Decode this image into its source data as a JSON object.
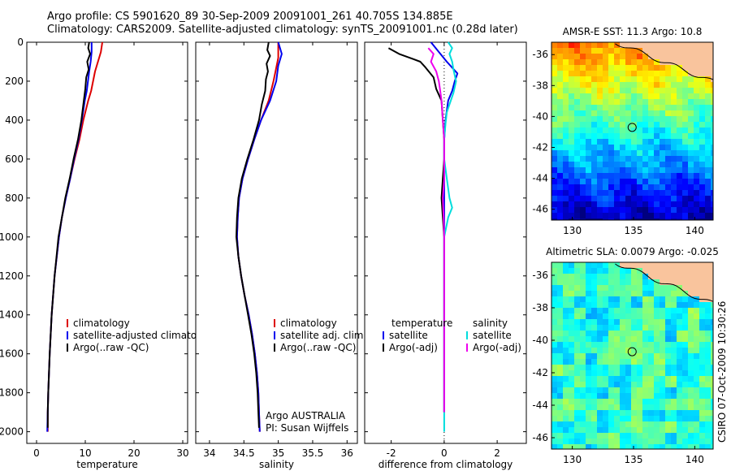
{
  "header": {
    "line1": "Argo profile: CS 5901620_89 30-Sep-2009 20091001_261 40.705S 134.885E",
    "line2": "Climatology: CARS2009. Satellite-adjusted climatology: synTS_20091001.nc (0.28d later)"
  },
  "footer_note": "CSIRO 07-Oct-2009 10:30:26",
  "colors": {
    "climatology": "#dd0000",
    "satellite": "#0000ee",
    "argo": "#000000",
    "salinity_satellite": "#00dddd",
    "salinity_argo": "#ee00ee"
  },
  "chart_data": [
    {
      "type": "line",
      "id": "temperature",
      "xlabel": "temperature",
      "ylabel": "",
      "xlim": [
        -2,
        31
      ],
      "ylim": [
        0,
        2060
      ],
      "y_inverted": true,
      "xticks": [
        0,
        10,
        20,
        30
      ],
      "yticks": [
        0,
        200,
        400,
        600,
        800,
        1000,
        1200,
        1400,
        1600,
        1800,
        2000
      ],
      "ytick_labels_shown": true,
      "legend": [
        "climatology",
        "satellite-adjusted climatology",
        "Argo(..raw -QC)"
      ],
      "series": [
        {
          "name": "climatology",
          "color": "#dd0000",
          "points": [
            [
              13.5,
              0
            ],
            [
              13.2,
              50
            ],
            [
              12.6,
              100
            ],
            [
              12.0,
              150
            ],
            [
              11.2,
              250
            ],
            [
              10.6,
              300
            ],
            [
              9.6,
              400
            ],
            [
              8.8,
              500
            ],
            [
              7.8,
              600
            ],
            [
              6.9,
              700
            ],
            [
              6.0,
              800
            ],
            [
              5.2,
              900
            ],
            [
              4.6,
              1000
            ],
            [
              3.7,
              1200
            ],
            [
              3.1,
              1400
            ],
            [
              2.7,
              1600
            ],
            [
              2.4,
              1800
            ],
            [
              2.3,
              1900
            ],
            [
              2.3,
              2000
            ]
          ]
        },
        {
          "name": "satellite-adjusted climatology",
          "color": "#0000ee",
          "points": [
            [
              11.3,
              0
            ],
            [
              11.3,
              50
            ],
            [
              11.1,
              100
            ],
            [
              10.8,
              150
            ],
            [
              10.3,
              250
            ],
            [
              9.9,
              300
            ],
            [
              9.3,
              400
            ],
            [
              8.6,
              500
            ],
            [
              7.7,
              600
            ],
            [
              6.9,
              700
            ],
            [
              6.0,
              800
            ],
            [
              5.2,
              900
            ],
            [
              4.6,
              1000
            ],
            [
              3.7,
              1200
            ],
            [
              3.1,
              1400
            ],
            [
              2.7,
              1600
            ],
            [
              2.4,
              1800
            ],
            [
              2.3,
              1900
            ],
            [
              2.2,
              2000
            ]
          ]
        },
        {
          "name": "Argo(..raw -QC)",
          "color": "#000000",
          "points": [
            [
              10.8,
              0
            ],
            [
              10.6,
              30
            ],
            [
              11.0,
              60
            ],
            [
              10.4,
              100
            ],
            [
              10.7,
              140
            ],
            [
              10.2,
              180
            ],
            [
              10.0,
              240
            ],
            [
              9.7,
              300
            ],
            [
              9.2,
              400
            ],
            [
              8.5,
              500
            ],
            [
              7.6,
              600
            ],
            [
              6.8,
              700
            ],
            [
              5.9,
              800
            ],
            [
              5.2,
              900
            ],
            [
              4.5,
              1000
            ],
            [
              3.7,
              1200
            ],
            [
              3.1,
              1400
            ],
            [
              2.7,
              1600
            ],
            [
              2.4,
              1800
            ],
            [
              2.3,
              1900
            ],
            [
              2.3,
              1980
            ]
          ]
        }
      ]
    },
    {
      "type": "line",
      "id": "salinity",
      "xlabel": "salinity",
      "ylabel": "",
      "xlim": [
        33.8,
        36.15
      ],
      "ylim": [
        0,
        2060
      ],
      "y_inverted": true,
      "xticks": [
        34,
        34.5,
        35,
        35.5,
        36
      ],
      "xtick_labels": [
        "34",
        "34.5",
        "35",
        "35.5",
        "36"
      ],
      "legend": [
        "climatology",
        "satellite adj. clim.",
        "Argo(..raw -QC)"
      ],
      "annotation": [
        "Argo AUSTRALIA",
        "PI: Susan Wijffels"
      ],
      "series": [
        {
          "name": "climatology",
          "color": "#dd0000",
          "points": [
            [
              35.0,
              0
            ],
            [
              35.0,
              80
            ],
            [
              34.96,
              150
            ],
            [
              34.93,
              200
            ],
            [
              34.86,
              300
            ],
            [
              34.75,
              400
            ],
            [
              34.65,
              500
            ],
            [
              34.56,
              600
            ],
            [
              34.48,
              700
            ],
            [
              34.43,
              800
            ],
            [
              34.41,
              900
            ],
            [
              34.4,
              1000
            ],
            [
              34.42,
              1100
            ],
            [
              34.46,
              1200
            ],
            [
              34.51,
              1300
            ],
            [
              34.57,
              1400
            ],
            [
              34.62,
              1500
            ],
            [
              34.66,
              1600
            ],
            [
              34.69,
              1700
            ],
            [
              34.71,
              1800
            ],
            [
              34.72,
              1900
            ],
            [
              34.73,
              2000
            ]
          ]
        },
        {
          "name": "satellite adj. clim.",
          "color": "#0000ee",
          "points": [
            [
              35.0,
              0
            ],
            [
              35.05,
              60
            ],
            [
              35.0,
              120
            ],
            [
              34.97,
              200
            ],
            [
              34.88,
              300
            ],
            [
              34.75,
              400
            ],
            [
              34.65,
              500
            ],
            [
              34.56,
              600
            ],
            [
              34.48,
              700
            ],
            [
              34.43,
              800
            ],
            [
              34.41,
              900
            ],
            [
              34.4,
              1000
            ],
            [
              34.42,
              1100
            ],
            [
              34.46,
              1200
            ],
            [
              34.51,
              1300
            ],
            [
              34.57,
              1400
            ],
            [
              34.62,
              1500
            ],
            [
              34.66,
              1600
            ],
            [
              34.69,
              1700
            ],
            [
              34.71,
              1800
            ],
            [
              34.72,
              1900
            ],
            [
              34.73,
              2000
            ]
          ]
        },
        {
          "name": "Argo(..raw -QC)",
          "color": "#000000",
          "points": [
            [
              34.86,
              0
            ],
            [
              34.84,
              40
            ],
            [
              34.88,
              70
            ],
            [
              34.83,
              110
            ],
            [
              34.85,
              150
            ],
            [
              34.82,
              190
            ],
            [
              34.81,
              250
            ],
            [
              34.76,
              320
            ],
            [
              34.72,
              400
            ],
            [
              34.64,
              500
            ],
            [
              34.55,
              600
            ],
            [
              34.47,
              700
            ],
            [
              34.42,
              800
            ],
            [
              34.4,
              900
            ],
            [
              34.39,
              1000
            ],
            [
              34.42,
              1100
            ],
            [
              34.46,
              1200
            ],
            [
              34.51,
              1300
            ],
            [
              34.56,
              1400
            ],
            [
              34.61,
              1500
            ],
            [
              34.65,
              1600
            ],
            [
              34.68,
              1700
            ],
            [
              34.7,
              1800
            ],
            [
              34.71,
              1900
            ],
            [
              34.72,
              1980
            ]
          ]
        }
      ]
    },
    {
      "type": "line",
      "id": "difference",
      "xlabel": "difference from climatology",
      "ylabel": "",
      "xlim": [
        -3,
        3.1
      ],
      "ylim": [
        0,
        2060
      ],
      "y_inverted": true,
      "xticks": [
        -2,
        0,
        2
      ],
      "zero_line": "dotted",
      "legend_left": {
        "title": "temperature",
        "items": [
          "satellite",
          "Argo(-adj)"
        ]
      },
      "legend_right": {
        "title": "salinity",
        "items": [
          "satellite",
          "Argo(-adj)"
        ]
      },
      "series": [
        {
          "name": "temperature satellite",
          "color": "#0000ee",
          "points": [
            [
              -0.5,
              0
            ],
            [
              -0.2,
              50
            ],
            [
              0.1,
              100
            ],
            [
              0.5,
              160
            ],
            [
              0.4,
              200
            ],
            [
              0.3,
              250
            ],
            [
              0.15,
              300
            ],
            [
              0.05,
              400
            ],
            [
              0,
              500
            ],
            [
              0,
              600
            ],
            [
              0,
              700
            ],
            [
              0,
              800
            ],
            [
              0,
              900
            ],
            [
              0,
              1000
            ],
            [
              0,
              1200
            ],
            [
              0,
              1400
            ],
            [
              0,
              1600
            ],
            [
              0,
              1800
            ],
            [
              0,
              1900
            ]
          ]
        },
        {
          "name": "temperature Argo(-adj)",
          "color": "#000000",
          "points": [
            [
              -2.1,
              30
            ],
            [
              -1.7,
              60
            ],
            [
              -1.3,
              80
            ],
            [
              -0.9,
              100
            ],
            [
              -0.7,
              130
            ],
            [
              -0.4,
              180
            ],
            [
              -0.3,
              240
            ],
            [
              -0.1,
              300
            ],
            [
              -0.05,
              400
            ],
            [
              0,
              500
            ],
            [
              0,
              600
            ],
            [
              -0.05,
              700
            ],
            [
              -0.1,
              800
            ],
            [
              -0.05,
              900
            ],
            [
              0,
              1000
            ],
            [
              0,
              1100
            ],
            [
              0,
              1200
            ],
            [
              0,
              1400
            ],
            [
              0,
              1600
            ],
            [
              0,
              1800
            ],
            [
              0,
              1900
            ]
          ]
        },
        {
          "name": "salinity satellite",
          "color": "#00dddd",
          "points": [
            [
              0.15,
              0
            ],
            [
              0.3,
              30
            ],
            [
              0.2,
              60
            ],
            [
              0.3,
              100
            ],
            [
              0.35,
              140
            ],
            [
              0.45,
              200
            ],
            [
              0.35,
              260
            ],
            [
              0.25,
              300
            ],
            [
              0.1,
              360
            ],
            [
              0.05,
              420
            ],
            [
              0,
              500
            ],
            [
              0,
              600
            ],
            [
              0.1,
              700
            ],
            [
              0.2,
              800
            ],
            [
              0.3,
              850
            ],
            [
              0.15,
              900
            ],
            [
              0,
              1000
            ],
            [
              0,
              1200
            ],
            [
              0,
              1400
            ],
            [
              0,
              1600
            ],
            [
              0,
              1800
            ],
            [
              0,
              2000
            ]
          ]
        },
        {
          "name": "salinity Argo(-adj)",
          "color": "#ee00ee",
          "points": [
            [
              -0.6,
              30
            ],
            [
              -0.4,
              60
            ],
            [
              -0.5,
              100
            ],
            [
              -0.3,
              150
            ],
            [
              -0.2,
              200
            ],
            [
              -0.15,
              250
            ],
            [
              -0.1,
              300
            ],
            [
              -0.05,
              400
            ],
            [
              0,
              500
            ],
            [
              0,
              600
            ],
            [
              0,
              700
            ],
            [
              -0.05,
              800
            ],
            [
              -0.02,
              900
            ],
            [
              0,
              1000
            ],
            [
              0,
              1200
            ],
            [
              0,
              1400
            ],
            [
              0,
              1600
            ],
            [
              0,
              1800
            ],
            [
              0,
              1900
            ]
          ]
        }
      ]
    },
    {
      "type": "heatmap",
      "id": "sst_map",
      "title": "AMSR-E SST: 11.3 Argo: 10.8",
      "xlim": [
        128.3,
        141.5
      ],
      "ylim": [
        -46.7,
        -35.2
      ],
      "xticks": [
        130,
        135,
        140
      ],
      "yticks": [
        -36,
        -38,
        -40,
        -42,
        -44,
        -46
      ],
      "marker": {
        "lon": 134.885,
        "lat": -40.705
      },
      "colormap": "jet"
    },
    {
      "type": "heatmap",
      "id": "sla_map",
      "title": "Altimetric SLA: 0.0079 Argo: -0.025",
      "xlim": [
        128.3,
        141.5
      ],
      "ylim": [
        -46.7,
        -35.2
      ],
      "xticks": [
        130,
        135,
        140
      ],
      "yticks": [
        -36,
        -38,
        -40,
        -42,
        -44,
        -46
      ],
      "marker": {
        "lon": 134.885,
        "lat": -40.705
      },
      "colormap": "jet"
    }
  ]
}
